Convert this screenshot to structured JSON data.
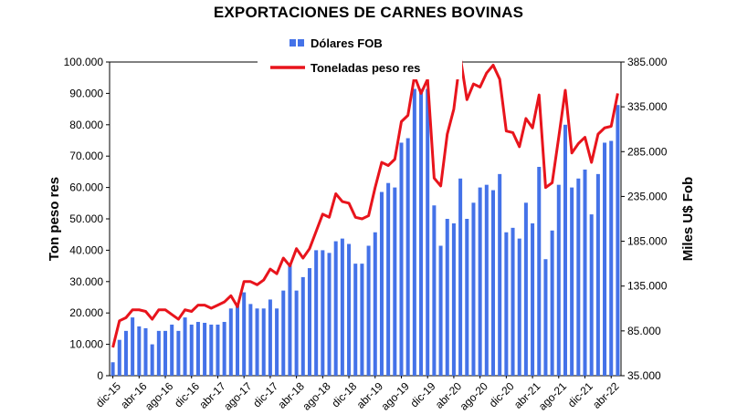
{
  "chart_data": {
    "type": "bar",
    "title": "EXPORTACIONES DE CARNES BOVINAS",
    "ylabel_left": "Ton peso res",
    "ylabel_right": "Miles U$ Fob",
    "ylim_left": [
      0,
      100000
    ],
    "ylim_right": [
      35000,
      385000
    ],
    "yticks_left": [
      "0",
      "10.000",
      "20.000",
      "30.000",
      "40.000",
      "50.000",
      "60.000",
      "70.000",
      "80.000",
      "90.000",
      "100.000"
    ],
    "yticks_right": [
      "35.000",
      "85.000",
      "135.000",
      "185.000",
      "235.000",
      "285.000",
      "335.000",
      "385.000"
    ],
    "x_tick_labels": [
      "dic-15",
      "abr-16",
      "ago-16",
      "dic-16",
      "abr-17",
      "ago-17",
      "dic-17",
      "abr-18",
      "ago-18",
      "dic-18",
      "abr-19",
      "ago-19",
      "dic-19",
      "abr-20",
      "ago-20",
      "dic-20",
      "abr-21",
      "ago-21",
      "dic-21",
      "abr-22"
    ],
    "legend_position": "top-center",
    "series": [
      {
        "name": "Dólares FOB",
        "kind": "bar",
        "axis": "right",
        "color": "#4472e8",
        "values": [
          50000,
          75000,
          85000,
          100000,
          90000,
          88000,
          70000,
          85000,
          85000,
          92000,
          85000,
          100000,
          92000,
          95000,
          94000,
          92000,
          92000,
          95000,
          110000,
          115000,
          128000,
          115000,
          110000,
          110000,
          120000,
          110000,
          130000,
          160000,
          130000,
          145000,
          155000,
          175000,
          175000,
          172000,
          185000,
          188000,
          182000,
          160000,
          160000,
          180000,
          195000,
          240000,
          250000,
          245000,
          295000,
          300000,
          355000,
          355000,
          355000,
          225000,
          180000,
          210000,
          205000,
          255000,
          210000,
          228000,
          245000,
          248000,
          242000,
          260000,
          195000,
          200000,
          188000,
          228000,
          205000,
          268000,
          165000,
          197000,
          248000,
          315000,
          245000,
          255000,
          265000,
          215000,
          260000,
          295000,
          297000,
          337000
        ]
      },
      {
        "name": "Toneladas peso res",
        "kind": "line",
        "axis": "left",
        "color": "#e8141c",
        "values": [
          9000,
          17500,
          18500,
          21000,
          21000,
          20500,
          18000,
          21000,
          21000,
          19500,
          18000,
          21000,
          20500,
          22500,
          22500,
          21500,
          22500,
          23500,
          25500,
          22000,
          30000,
          30000,
          29000,
          30500,
          34000,
          32500,
          37500,
          35000,
          40500,
          37500,
          40500,
          46000,
          51500,
          50500,
          58000,
          55500,
          55000,
          50500,
          50000,
          51000,
          60000,
          68000,
          67000,
          69000,
          81000,
          83000,
          95500,
          90000,
          94500,
          63000,
          60500,
          77000,
          85000,
          101500,
          88000,
          93000,
          92000,
          96500,
          99000,
          94500,
          78000,
          77500,
          73000,
          82000,
          79000,
          89500,
          60000,
          61500,
          76000,
          91000,
          71000,
          74000,
          76000,
          68000,
          77000,
          79000,
          79500,
          90000
        ]
      }
    ]
  }
}
